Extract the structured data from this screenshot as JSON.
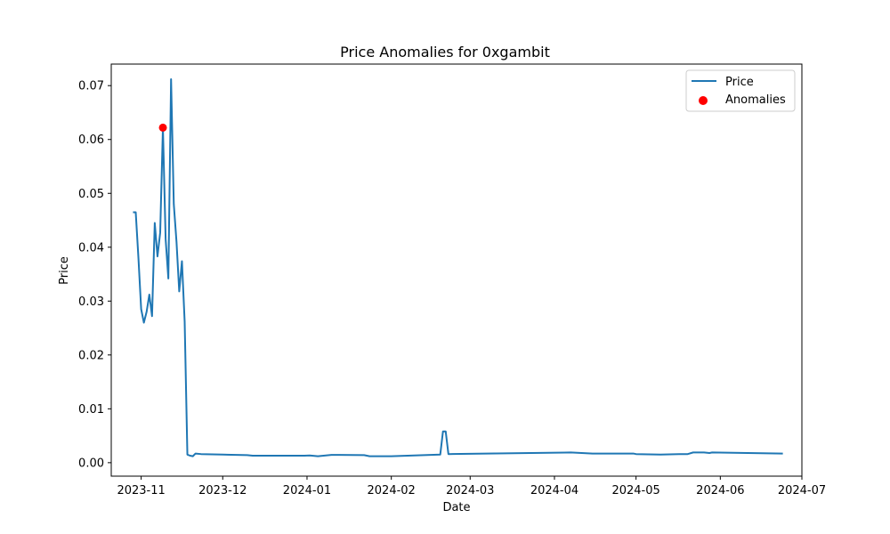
{
  "chart_data": {
    "type": "line",
    "title": "Price Anomalies for 0xgambit",
    "xlabel": "Date",
    "ylabel": "Price",
    "xlim": [
      "2023-10-21",
      "2024-07-01"
    ],
    "ylim": [
      -0.0025,
      0.074
    ],
    "x_ticks": [
      {
        "date": "2023-11-01",
        "label": "2023-11"
      },
      {
        "date": "2023-12-01",
        "label": "2023-12"
      },
      {
        "date": "2024-01-01",
        "label": "2024-01"
      },
      {
        "date": "2024-02-01",
        "label": "2024-02"
      },
      {
        "date": "2024-03-01",
        "label": "2024-03"
      },
      {
        "date": "2024-04-01",
        "label": "2024-04"
      },
      {
        "date": "2024-05-01",
        "label": "2024-05"
      },
      {
        "date": "2024-06-01",
        "label": "2024-06"
      },
      {
        "date": "2024-07-01",
        "label": "2024-07"
      }
    ],
    "y_ticks": [
      {
        "value": 0.0,
        "label": "0.00"
      },
      {
        "value": 0.01,
        "label": "0.01"
      },
      {
        "value": 0.02,
        "label": "0.02"
      },
      {
        "value": 0.03,
        "label": "0.03"
      },
      {
        "value": 0.04,
        "label": "0.04"
      },
      {
        "value": 0.05,
        "label": "0.05"
      },
      {
        "value": 0.06,
        "label": "0.06"
      },
      {
        "value": 0.07,
        "label": "0.07"
      }
    ],
    "grid": false,
    "legend_position": "top-right",
    "series": [
      {
        "name": "Price",
        "kind": "line",
        "color": "#1f77b4",
        "points": [
          [
            "2023-10-29",
            0.0465
          ],
          [
            "2023-10-30",
            0.0465
          ],
          [
            "2023-10-31",
            0.038
          ],
          [
            "2023-11-01",
            0.0285
          ],
          [
            "2023-11-02",
            0.026
          ],
          [
            "2023-11-03",
            0.028
          ],
          [
            "2023-11-04",
            0.0312
          ],
          [
            "2023-11-05",
            0.0272
          ],
          [
            "2023-11-06",
            0.0445
          ],
          [
            "2023-11-07",
            0.0383
          ],
          [
            "2023-11-08",
            0.0427
          ],
          [
            "2023-11-09",
            0.0622
          ],
          [
            "2023-11-10",
            0.0415
          ],
          [
            "2023-11-11",
            0.0342
          ],
          [
            "2023-11-12",
            0.0712
          ],
          [
            "2023-11-13",
            0.048
          ],
          [
            "2023-11-14",
            0.041
          ],
          [
            "2023-11-15",
            0.0318
          ],
          [
            "2023-11-16",
            0.0374
          ],
          [
            "2023-11-17",
            0.0262
          ],
          [
            "2023-11-18",
            0.0015
          ],
          [
            "2023-11-19",
            0.0013
          ],
          [
            "2023-11-20",
            0.0012
          ],
          [
            "2023-11-21",
            0.0017
          ],
          [
            "2023-11-23",
            0.0016
          ],
          [
            "2023-12-01",
            0.0015
          ],
          [
            "2023-12-10",
            0.0014
          ],
          [
            "2023-12-12",
            0.0013
          ],
          [
            "2023-12-31",
            0.0013
          ],
          [
            "2024-01-02",
            0.00135
          ],
          [
            "2024-01-05",
            0.0012
          ],
          [
            "2024-01-10",
            0.00145
          ],
          [
            "2024-01-22",
            0.0014
          ],
          [
            "2024-01-24",
            0.0012
          ],
          [
            "2024-02-01",
            0.0012
          ],
          [
            "2024-02-19",
            0.0015
          ],
          [
            "2024-02-20",
            0.0058
          ],
          [
            "2024-02-21",
            0.0058
          ],
          [
            "2024-02-22",
            0.0016
          ],
          [
            "2024-04-07",
            0.0019
          ],
          [
            "2024-04-15",
            0.0017
          ],
          [
            "2024-04-22",
            0.0017
          ],
          [
            "2024-04-30",
            0.0017
          ],
          [
            "2024-05-01",
            0.0016
          ],
          [
            "2024-05-10",
            0.0015
          ],
          [
            "2024-05-18",
            0.0016
          ],
          [
            "2024-05-20",
            0.0016
          ],
          [
            "2024-05-22",
            0.0019
          ],
          [
            "2024-05-26",
            0.0019
          ],
          [
            "2024-05-28",
            0.0018
          ],
          [
            "2024-05-29",
            0.0019
          ],
          [
            "2024-06-24",
            0.0017
          ]
        ]
      },
      {
        "name": "Anomalies",
        "kind": "scatter",
        "color": "#ff0000",
        "points": [
          [
            "2023-11-09",
            0.0622
          ]
        ]
      }
    ]
  }
}
